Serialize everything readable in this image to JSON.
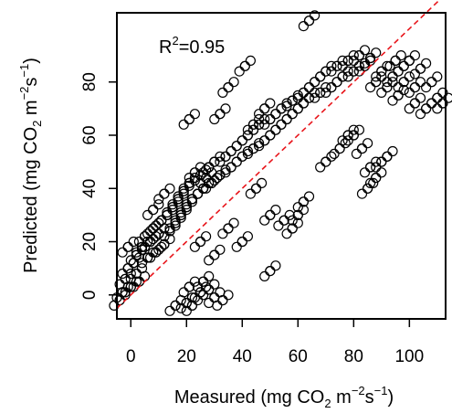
{
  "chart_data": {
    "type": "scatter",
    "xlabel": {
      "prefix": "Measured (mg CO",
      "sub": "2",
      "mid": " m",
      "sup1": "−2",
      "s": "s",
      "sup2": "−1",
      "end": ")"
    },
    "ylabel": {
      "prefix": "Predicted (mg CO",
      "sub": "2",
      "mid": " m",
      "sup1": "−2",
      "s": "s",
      "sup2": "−1",
      "end": ")"
    },
    "annotation": {
      "base": "R",
      "sup": "2",
      "rest": "=0.95"
    },
    "xlim": [
      -5,
      113
    ],
    "ylim": [
      -9,
      106
    ],
    "x_ticks": [
      "0",
      "20",
      "40",
      "60",
      "80",
      "100"
    ],
    "x_tick_values": [
      0,
      20,
      40,
      60,
      80,
      100
    ],
    "y_ticks": [
      "0",
      "20",
      "40",
      "60",
      "80"
    ],
    "y_tick_values": [
      0,
      20,
      40,
      60,
      80
    ],
    "grid": false,
    "legend": "none",
    "point_style": "open-circle",
    "point_color": "#000000",
    "reference_line": {
      "style": "dashed",
      "color": "#e8151b",
      "x": [
        -5,
        113
      ],
      "y": [
        -5,
        113
      ]
    },
    "series": [
      {
        "values": [
          [
            -4,
            -2
          ],
          [
            -3,
            1
          ],
          [
            -2,
            6
          ],
          [
            -1,
            18
          ],
          [
            -1,
            10
          ],
          [
            0,
            3
          ],
          [
            1,
            12
          ],
          [
            2,
            8
          ],
          [
            2,
            15
          ],
          [
            3,
            5
          ],
          [
            4,
            18
          ],
          [
            5,
            22
          ],
          [
            6,
            14
          ],
          [
            7,
            20
          ],
          [
            8,
            25
          ],
          [
            9,
            16
          ],
          [
            10,
            23
          ],
          [
            11,
            28
          ],
          [
            12,
            19
          ],
          [
            13,
            30
          ],
          [
            14,
            24
          ],
          [
            15,
            33
          ],
          [
            16,
            27
          ],
          [
            17,
            36
          ],
          [
            18,
            30
          ],
          [
            19,
            39
          ],
          [
            20,
            33
          ],
          [
            21,
            42
          ],
          [
            22,
            36
          ],
          [
            23,
            46
          ],
          [
            24,
            38
          ],
          [
            25,
            45
          ],
          [
            26,
            40
          ],
          [
            27,
            44
          ],
          [
            28,
            48
          ],
          [
            29,
            42
          ],
          [
            30,
            50
          ],
          [
            32,
            45
          ],
          [
            34,
            52
          ],
          [
            36,
            48
          ],
          [
            38,
            56
          ],
          [
            40,
            52
          ],
          [
            42,
            60
          ],
          [
            44,
            55
          ],
          [
            46,
            64
          ],
          [
            48,
            58
          ],
          [
            50,
            66
          ],
          [
            52,
            62
          ],
          [
            54,
            70
          ],
          [
            56,
            66
          ],
          [
            58,
            73
          ],
          [
            60,
            70
          ],
          [
            62,
            76
          ],
          [
            64,
            74
          ],
          [
            66,
            80
          ],
          [
            68,
            76
          ],
          [
            70,
            84
          ],
          [
            72,
            78
          ],
          [
            74,
            86
          ],
          [
            76,
            82
          ],
          [
            78,
            88
          ],
          [
            80,
            84
          ],
          [
            82,
            90
          ],
          [
            84,
            86
          ],
          [
            86,
            89
          ],
          [
            88,
            80
          ],
          [
            90,
            84
          ],
          [
            92,
            78
          ],
          [
            94,
            82
          ],
          [
            96,
            75
          ],
          [
            98,
            80
          ],
          [
            100,
            88
          ],
          [
            102,
            72
          ],
          [
            104,
            85
          ],
          [
            106,
            70
          ],
          [
            108,
            80
          ],
          [
            110,
            74
          ],
          [
            112,
            72
          ],
          [
            102,
            78
          ],
          [
            98,
            86
          ],
          [
            95,
            88
          ],
          [
            64,
            103
          ],
          [
            41,
            86
          ],
          [
            21,
            66
          ],
          [
            32,
            68
          ],
          [
            35,
            78
          ],
          [
            44,
            64
          ],
          [
            48,
            70
          ],
          [
            50,
            9
          ],
          [
            28,
            2
          ],
          [
            30,
            -1
          ],
          [
            33,
            -2
          ],
          [
            25,
            1
          ],
          [
            22,
            -4
          ],
          [
            20,
            -3
          ],
          [
            21,
            3
          ],
          [
            16,
            -4
          ],
          [
            26,
            5
          ],
          [
            8,
            32
          ],
          [
            12,
            38
          ],
          [
            85,
            40
          ],
          [
            88,
            44
          ],
          [
            90,
            50
          ],
          [
            86,
            48
          ],
          [
            92,
            52
          ],
          [
            83,
            55
          ],
          [
            80,
            60
          ],
          [
            60,
            30
          ],
          [
            62,
            35
          ],
          [
            55,
            28
          ],
          [
            50,
            30
          ],
          [
            58,
            25
          ],
          [
            45,
            40
          ],
          [
            70,
            50
          ],
          [
            75,
            55
          ],
          [
            78,
            60
          ],
          [
            40,
            20
          ],
          [
            35,
            25
          ],
          [
            30,
            15
          ],
          [
            25,
            20
          ]
        ]
      }
    ]
  }
}
